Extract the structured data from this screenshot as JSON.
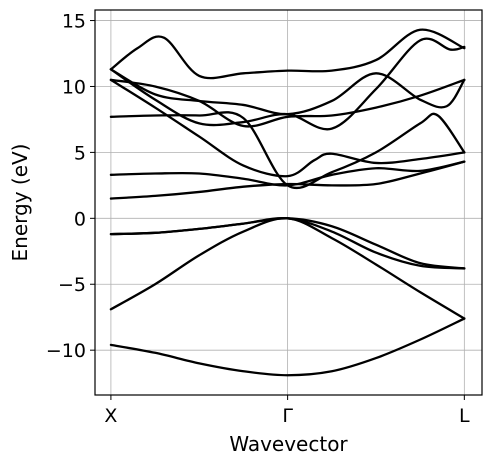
{
  "chart_data": {
    "type": "line",
    "title": "",
    "xlabel": "Wavevector",
    "ylabel": "Energy (eV)",
    "xlim": [
      -0.09,
      2.1
    ],
    "ylim": [
      -13.4,
      15.8
    ],
    "grid": true,
    "legend": "none",
    "line_color": "#000000",
    "x_ticks": [
      {
        "value": 0,
        "label": "X"
      },
      {
        "value": 1,
        "label": "Γ"
      },
      {
        "value": 2,
        "label": "L"
      }
    ],
    "y_ticks": [
      {
        "value": -10,
        "label": "−10"
      },
      {
        "value": -5,
        "label": "−5"
      },
      {
        "value": 0,
        "label": "0"
      },
      {
        "value": 5,
        "label": "5"
      },
      {
        "value": 10,
        "label": "10"
      },
      {
        "value": 15,
        "label": "15"
      }
    ],
    "series": [
      {
        "x": [
          0,
          0.25,
          0.5,
          0.75,
          1.0,
          1.25,
          1.5,
          1.75,
          2.0
        ],
        "y": [
          -9.6,
          -10.2,
          -11.0,
          -11.6,
          -11.9,
          -11.6,
          -10.6,
          -9.2,
          -7.6
        ]
      },
      {
        "x": [
          0,
          0.25,
          0.5,
          0.75,
          1.0,
          1.25,
          1.5,
          1.75,
          2.0
        ],
        "y": [
          -6.9,
          -5.0,
          -2.8,
          -1.0,
          0.0,
          -1.5,
          -3.5,
          -5.6,
          -7.6
        ]
      },
      {
        "x": [
          0,
          0.25,
          0.5,
          0.75,
          1.0,
          1.25,
          1.5,
          1.75,
          2.0
        ],
        "y": [
          -1.2,
          -1.1,
          -0.8,
          -0.4,
          0.0,
          -1.0,
          -2.6,
          -3.6,
          -3.8
        ]
      },
      {
        "x": [
          0,
          0.25,
          0.5,
          0.75,
          1.0,
          1.25,
          1.5,
          1.75,
          2.0
        ],
        "y": [
          -1.2,
          -1.1,
          -0.8,
          -0.4,
          0.0,
          -0.6,
          -2.0,
          -3.4,
          -3.8
        ]
      },
      {
        "x": [
          0,
          0.25,
          0.5,
          0.75,
          1.0,
          1.25,
          1.5,
          1.75,
          2.0
        ],
        "y": [
          1.5,
          1.7,
          2.0,
          2.4,
          2.6,
          2.5,
          2.6,
          3.4,
          4.3
        ]
      },
      {
        "x": [
          0,
          0.25,
          0.5,
          0.75,
          1.0,
          1.25,
          1.5,
          1.75,
          2.0
        ],
        "y": [
          3.3,
          3.4,
          3.4,
          3.0,
          2.5,
          3.3,
          3.8,
          3.6,
          4.3
        ]
      },
      {
        "x": [
          0,
          0.25,
          0.5,
          0.75,
          1.0,
          1.15,
          1.25,
          1.5,
          1.75,
          2.0
        ],
        "y": [
          10.5,
          8.4,
          6.2,
          4.0,
          3.2,
          4.4,
          4.9,
          4.2,
          4.5,
          5.0
        ]
      },
      {
        "x": [
          0,
          0.25,
          0.5,
          0.75,
          1.0,
          1.25,
          1.5,
          1.75,
          1.85,
          2.0
        ],
        "y": [
          7.7,
          7.8,
          7.8,
          7.6,
          2.5,
          3.5,
          5.0,
          7.2,
          7.8,
          5.0
        ]
      },
      {
        "x": [
          0,
          0.25,
          0.5,
          0.75,
          1.0,
          1.25,
          1.5,
          1.75,
          2.0
        ],
        "y": [
          10.5,
          10.0,
          8.9,
          7.0,
          7.7,
          7.8,
          8.4,
          9.3,
          10.5
        ]
      },
      {
        "x": [
          0,
          0.25,
          0.5,
          0.75,
          1.0,
          1.25,
          1.5,
          1.75,
          1.92,
          2.0
        ],
        "y": [
          11.3,
          9.0,
          7.2,
          7.3,
          7.9,
          6.8,
          9.8,
          13.5,
          12.8,
          13.0
        ]
      },
      {
        "x": [
          0,
          0.15,
          0.3,
          0.5,
          0.75,
          1.0,
          1.25,
          1.5,
          1.75,
          2.0
        ],
        "y": [
          11.3,
          12.9,
          13.7,
          10.8,
          11.0,
          11.2,
          11.2,
          12.0,
          14.3,
          12.9
        ]
      },
      {
        "x": [
          0,
          0.25,
          0.5,
          0.75,
          1.0,
          1.25,
          1.5,
          1.75,
          1.9,
          2.0
        ],
        "y": [
          11.3,
          9.4,
          8.9,
          8.6,
          7.9,
          8.9,
          11.0,
          9.0,
          8.5,
          10.5
        ]
      }
    ]
  }
}
